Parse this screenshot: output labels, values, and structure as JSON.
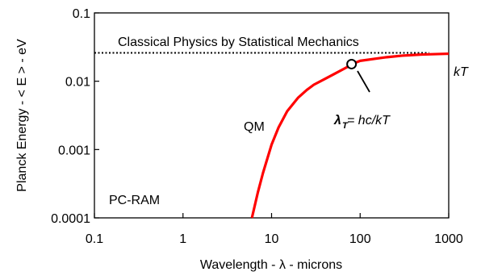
{
  "chart_data": {
    "type": "line",
    "xscale": "log",
    "yscale": "log",
    "xlim": [
      0.1,
      1000
    ],
    "ylim": [
      0.0001,
      0.1
    ],
    "xlabel": "Wavelength - λ -  microns",
    "ylabel": "Planck Energy - < E > - eV",
    "x_ticks": [
      "0.1",
      "1",
      "10",
      "100",
      "1000"
    ],
    "y_ticks": [
      "0.0001",
      "0.001",
      "0.01",
      "0.1"
    ],
    "grid": false,
    "series": [
      {
        "name": "QM",
        "color": "#ff0000",
        "x": [
          6,
          7,
          8,
          10,
          12,
          15,
          20,
          25,
          30,
          40,
          50,
          70,
          80,
          100,
          150,
          200,
          300,
          500,
          1000
        ],
        "y": [
          0.0001,
          0.000236,
          0.000454,
          0.00118,
          0.00211,
          0.00364,
          0.00577,
          0.00746,
          0.00889,
          0.0108,
          0.0126,
          0.0159,
          0.0177,
          0.0199,
          0.0214,
          0.0225,
          0.0237,
          0.0246,
          0.0253
        ]
      },
      {
        "name": "Classical Physics by Statistical Mechanics",
        "color": "#000000",
        "style": "dotted",
        "x": [
          0.1,
          600
        ],
        "y": [
          0.026,
          0.026
        ]
      }
    ],
    "marker": {
      "x": 80,
      "y": 0.0178
    },
    "annotations": {
      "classical": "Classical Physics by Statistical Mechanics",
      "kT": "kT",
      "qm": "QM",
      "lambda_sub": "T",
      "lambda_eq": " = hc/kT",
      "pcram": "PC-RAM"
    }
  }
}
